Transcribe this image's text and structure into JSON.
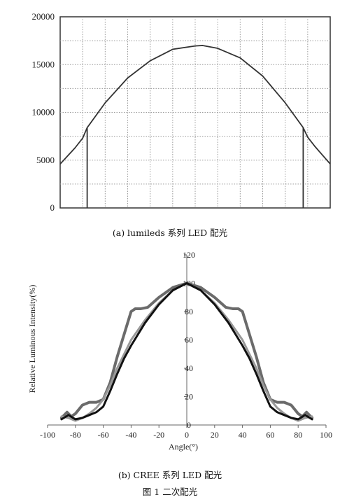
{
  "captions": {
    "a": "(a) lumileds 系列 LED 配光",
    "b": "(b) CREE 系列 LED 配光",
    "figure": "图 1 二次配光"
  },
  "chart_data": [
    {
      "type": "line",
      "title": "",
      "xlabel": "",
      "ylabel": "",
      "grid": true,
      "xlim": [
        -90,
        90
      ],
      "ylim": [
        0,
        20000
      ],
      "yticks": [
        0,
        5000,
        10000,
        15000,
        20000
      ],
      "x": [
        -90,
        -80,
        -75,
        -72,
        -60,
        -45,
        -30,
        -15,
        0,
        5,
        15,
        30,
        45,
        60,
        72,
        75,
        80,
        90
      ],
      "series": [
        {
          "values": [
            4600,
            6300,
            7300,
            8400,
            11000,
            13600,
            15400,
            16600,
            16950,
            17000,
            16700,
            15700,
            13800,
            11000,
            8400,
            7400,
            6400,
            4600
          ]
        }
      ],
      "markers_x": [
        -72,
        72
      ]
    },
    {
      "type": "line",
      "title": "",
      "xlabel": "Angle(°)",
      "ylabel": "Relative Luminous Intensity(%)",
      "grid": false,
      "xlim": [
        -100,
        100
      ],
      "ylim": [
        0,
        120
      ],
      "xticks": [
        -100,
        -80,
        -60,
        -40,
        -20,
        0,
        20,
        40,
        60,
        80,
        100
      ],
      "yticks": [
        0,
        20,
        40,
        60,
        80,
        100,
        120
      ],
      "series": [
        {
          "color": "#6b6b6b",
          "x": [
            -90,
            -86,
            -83,
            -80,
            -75,
            -70,
            -65,
            -60,
            -55,
            -50,
            -45,
            -40,
            -37,
            -33,
            -28,
            -20,
            -10,
            0,
            10,
            20,
            28,
            33,
            37,
            40,
            45,
            50,
            55,
            60,
            65,
            70,
            75,
            80,
            83,
            86,
            90
          ],
          "y": [
            5,
            9,
            6,
            8,
            14,
            16,
            16,
            18,
            30,
            48,
            64,
            80,
            82,
            82,
            83,
            90,
            97,
            100,
            97,
            90,
            83,
            82,
            82,
            80,
            64,
            48,
            30,
            18,
            16,
            16,
            14,
            8,
            6,
            9,
            5
          ]
        },
        {
          "color": "#999999",
          "x": [
            -90,
            -85,
            -80,
            -75,
            -70,
            -65,
            -60,
            -55,
            -50,
            -45,
            -40,
            -30,
            -20,
            -10,
            0,
            10,
            20,
            30,
            40,
            45,
            50,
            55,
            60,
            65,
            70,
            75,
            80,
            85,
            90
          ],
          "y": [
            6,
            5,
            3,
            5,
            8,
            12,
            18,
            28,
            40,
            50,
            60,
            74,
            86,
            95,
            100,
            95,
            86,
            74,
            60,
            50,
            40,
            28,
            18,
            12,
            8,
            5,
            3,
            5,
            6
          ]
        },
        {
          "color": "#111111",
          "x": [
            -90,
            -85,
            -80,
            -75,
            -70,
            -65,
            -60,
            -55,
            -50,
            -45,
            -40,
            -30,
            -20,
            -10,
            0,
            10,
            20,
            30,
            40,
            45,
            50,
            55,
            60,
            65,
            70,
            75,
            80,
            85,
            90
          ],
          "y": [
            4,
            7,
            4,
            5,
            7,
            9,
            13,
            24,
            36,
            47,
            56,
            72,
            85,
            95,
            100,
            95,
            85,
            72,
            56,
            47,
            36,
            24,
            13,
            9,
            7,
            5,
            4,
            7,
            4
          ]
        }
      ]
    }
  ]
}
